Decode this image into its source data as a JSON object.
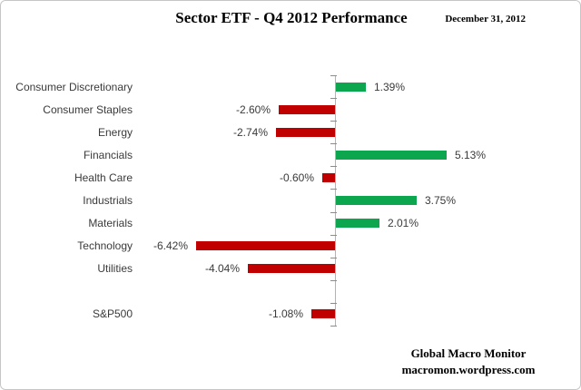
{
  "header": {
    "title": "Sector ETF - Q4 2012 Performance",
    "date": "December 31, 2012"
  },
  "chart_data": {
    "type": "bar",
    "orientation": "horizontal",
    "title": "Sector ETF - Q4 2012 Performance",
    "subtitle": "December 31, 2012",
    "categories": [
      "Consumer Discretionary",
      "Consumer Staples",
      "Energy",
      "Financials",
      "Health Care",
      "Industrials",
      "Materials",
      "Technology",
      "Utilities",
      "S&P500"
    ],
    "values": [
      1.39,
      -2.6,
      -2.74,
      5.13,
      -0.6,
      3.75,
      2.01,
      -6.42,
      -4.04,
      -1.08
    ],
    "value_labels": [
      "1.39%",
      "-2.60%",
      "-2.74%",
      "5.13%",
      "-0.60%",
      "3.75%",
      "2.01%",
      "-6.42%",
      "-4.04%",
      "-1.08%"
    ],
    "xlabel": "",
    "ylabel": "",
    "xlim": [
      -8,
      9
    ],
    "grid": false,
    "legend": false,
    "gap_before_last": true,
    "positive_color": "#0CA64F",
    "negative_color": "#C00000",
    "axis_color": "#b3b3b3",
    "tick_color": "#8c8c8c",
    "label_color": "#3a3a3a"
  },
  "footer": {
    "line1": "Global Macro Monitor",
    "line2": "macromon.wordpress.com"
  }
}
